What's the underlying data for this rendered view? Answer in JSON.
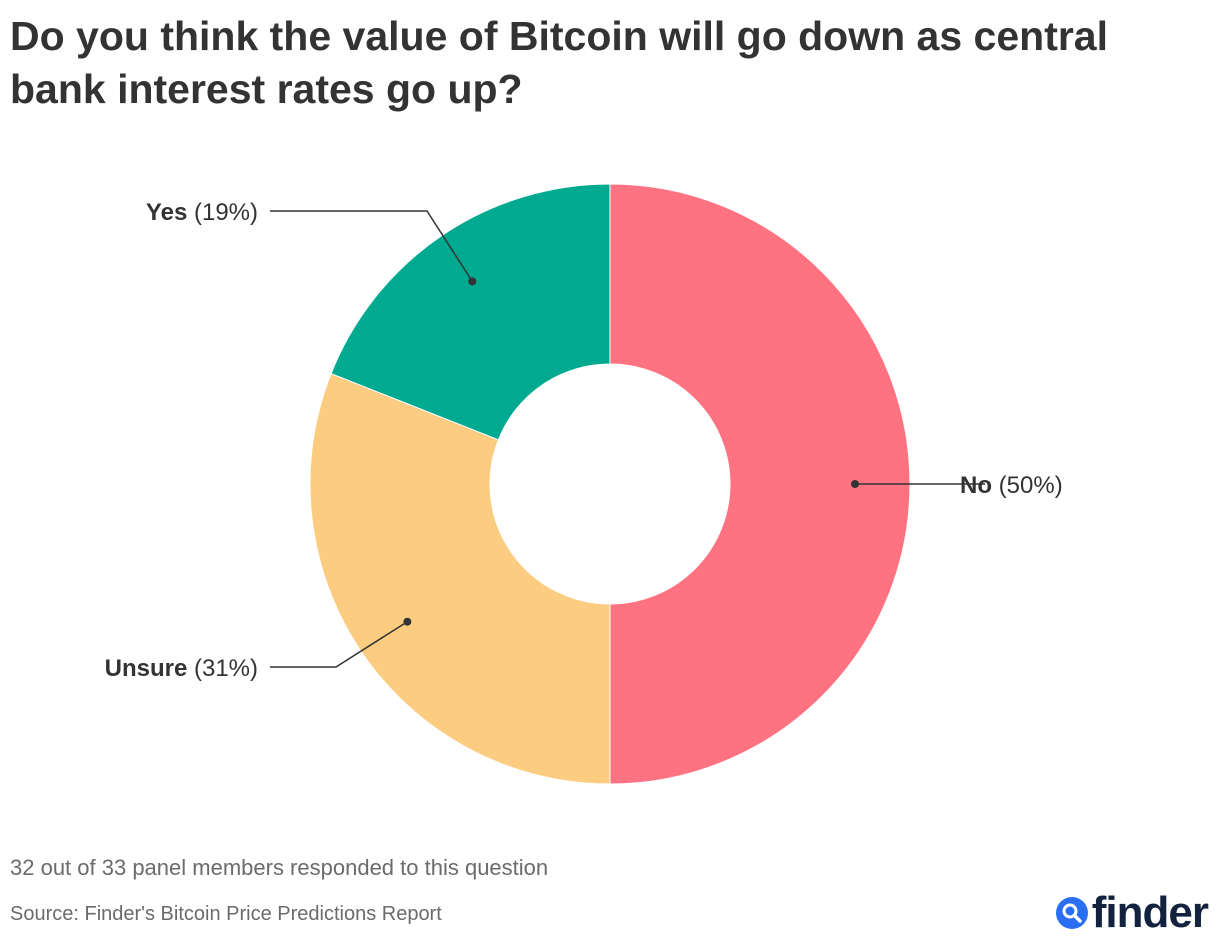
{
  "title": "Do you think the value of Bitcoin will go down as central bank interest rates go up?",
  "chart_data": {
    "type": "pie",
    "donut": true,
    "slices": [
      {
        "category": "No",
        "pct_label": "(50%)",
        "value": 50,
        "color": "#ff7282"
      },
      {
        "category": "Unsure",
        "pct_label": "(31%)",
        "value": 31,
        "color": "#fccc80"
      },
      {
        "category": "Yes",
        "pct_label": "(19%)",
        "value": 19,
        "color": "#00aa90"
      }
    ],
    "start_angle_deg": 0,
    "direction": "clockwise",
    "label_sides": [
      "right",
      "left",
      "left"
    ]
  },
  "footer": {
    "note": "32 out of 33 panel members responded to this question",
    "source": "Source: Finder's Bitcoin Price Predictions Report"
  },
  "logo": {
    "text": "finder",
    "icon": "search-icon"
  }
}
